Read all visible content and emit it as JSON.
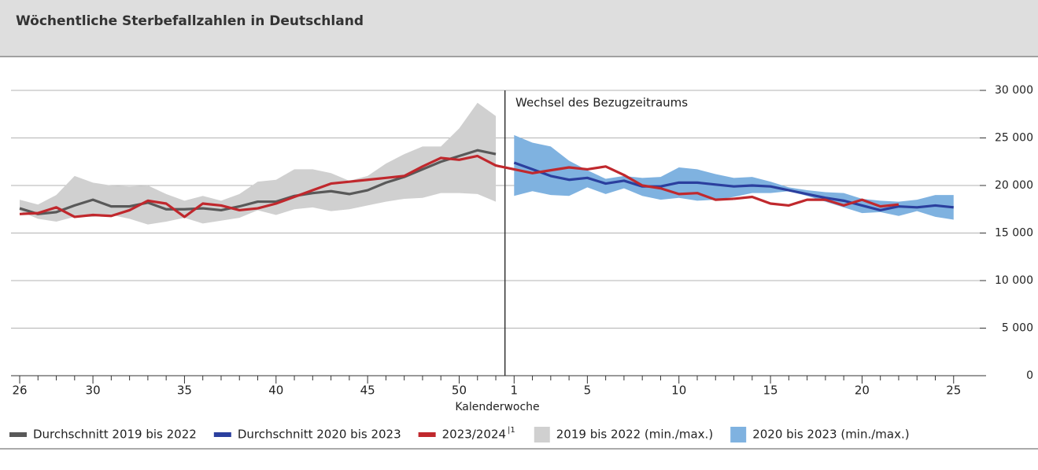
{
  "chart_data": {
    "type": "line",
    "title": "Wöchentliche Sterbefallzahlen in Deutschland",
    "x_label": "Kalenderwoche",
    "annotation": "Wechsel des Bezugzeitraums",
    "categories": [
      "26",
      null,
      null,
      null,
      "30",
      null,
      null,
      null,
      null,
      "35",
      null,
      null,
      null,
      null,
      "40",
      null,
      null,
      null,
      null,
      "45",
      null,
      null,
      null,
      null,
      "50",
      null,
      null,
      "1",
      null,
      null,
      null,
      "5",
      null,
      null,
      null,
      null,
      "10",
      null,
      null,
      null,
      null,
      "15",
      null,
      null,
      null,
      null,
      "20",
      null,
      null,
      null,
      null,
      "25"
    ],
    "ylim": [
      0,
      30000
    ],
    "yticks": [
      0,
      {
        "value": 5000,
        "label": "5 000"
      },
      {
        "value": 10000,
        "label": "10 000"
      },
      {
        "value": 15000,
        "label": "15 000"
      },
      {
        "value": 20000,
        "label": "20 000"
      },
      {
        "value": 25000,
        "label": "25 000"
      },
      {
        "value": 30000,
        "label": "30 000"
      }
    ],
    "grid": true,
    "legend": "bottom",
    "series": [
      {
        "name": "Durchschnitt 2019 bis 2022",
        "color": "#595959",
        "values": [
          17600,
          17000,
          17200,
          17900,
          18500,
          17800,
          17800,
          18200,
          17500,
          17500,
          17600,
          17400,
          17800,
          18300,
          18300,
          18900,
          19200,
          19400,
          19100,
          19500,
          20300,
          20900,
          21700,
          22500,
          23100,
          23700,
          23300,
          null,
          null,
          null,
          null,
          null,
          null,
          null,
          null,
          null,
          null,
          null,
          null,
          null,
          null,
          null,
          null,
          null,
          null,
          null,
          null,
          null,
          null,
          null,
          null,
          null
        ]
      },
      {
        "name": "Durchschnitt 2020 bis 2023",
        "color": "#2b3f9e",
        "values": [
          null,
          null,
          null,
          null,
          null,
          null,
          null,
          null,
          null,
          null,
          null,
          null,
          null,
          null,
          null,
          null,
          null,
          null,
          null,
          null,
          null,
          null,
          null,
          null,
          null,
          null,
          null,
          22400,
          21700,
          21000,
          20600,
          20800,
          20200,
          20500,
          19900,
          19900,
          20300,
          20300,
          20100,
          19900,
          20000,
          19900,
          19500,
          19100,
          18700,
          18400,
          17900,
          17400,
          17800,
          17700,
          17900,
          17700
        ]
      },
      {
        "name": "2023/2024",
        "footnote": "|1",
        "color": "#c0282d",
        "dotted_from_index": 39,
        "values": [
          17000,
          17100,
          17700,
          16700,
          16900,
          16800,
          17400,
          18400,
          18100,
          16700,
          18100,
          17900,
          17400,
          17600,
          18100,
          18800,
          19500,
          20200,
          20400,
          20600,
          20800,
          21000,
          22000,
          22900,
          22700,
          23100,
          22100,
          21700,
          21300,
          21600,
          21900,
          21700,
          22000,
          21100,
          20000,
          19700,
          19100,
          19200,
          18500,
          18600,
          18800,
          18100,
          17900,
          18500,
          18500,
          17900,
          18500,
          17800,
          18000,
          null,
          null,
          null
        ]
      }
    ],
    "bands": [
      {
        "name": "2019 bis 2022 (min./max.)",
        "color": "#d0d0d0",
        "upper": [
          18500,
          18000,
          19000,
          21000,
          20300,
          20000,
          19900,
          20000,
          19100,
          18400,
          18900,
          18400,
          19100,
          20400,
          20600,
          21700,
          21700,
          21300,
          20500,
          21000,
          22300,
          23300,
          24100,
          24100,
          26000,
          28700,
          27300,
          null,
          null,
          null,
          null,
          null,
          null,
          null,
          null,
          null,
          null,
          null,
          null,
          null,
          null,
          null,
          null,
          null,
          null,
          null,
          null,
          null,
          null,
          null,
          null,
          null
        ],
        "lower": [
          17300,
          16500,
          16200,
          16700,
          16700,
          16900,
          16500,
          15900,
          16200,
          16600,
          16000,
          16300,
          16600,
          17400,
          16900,
          17500,
          17700,
          17300,
          17500,
          17900,
          18300,
          18600,
          18700,
          19200,
          19200,
          19100,
          18300,
          null,
          null,
          null,
          null,
          null,
          null,
          null,
          null,
          null,
          null,
          null,
          null,
          null,
          null,
          null,
          null,
          null,
          null,
          null,
          null,
          null,
          null,
          null,
          null,
          null
        ]
      },
      {
        "name": "2020 bis 2023 (min./max.)",
        "color": "#7fb2e0",
        "upper": [
          null,
          null,
          null,
          null,
          null,
          null,
          null,
          null,
          null,
          null,
          null,
          null,
          null,
          null,
          null,
          null,
          null,
          null,
          null,
          null,
          null,
          null,
          null,
          null,
          null,
          null,
          null,
          25300,
          24500,
          24100,
          22600,
          21600,
          20700,
          21000,
          20800,
          20900,
          21900,
          21700,
          21200,
          20800,
          20900,
          20400,
          19800,
          19500,
          19300,
          19200,
          18600,
          18400,
          18300,
          18500,
          19000,
          19000
        ],
        "lower": [
          null,
          null,
          null,
          null,
          null,
          null,
          null,
          null,
          null,
          null,
          null,
          null,
          null,
          null,
          null,
          null,
          null,
          null,
          null,
          null,
          null,
          null,
          null,
          null,
          null,
          null,
          null,
          18900,
          19400,
          19000,
          18900,
          19800,
          19100,
          19700,
          18900,
          18500,
          18700,
          18400,
          18500,
          18800,
          19200,
          19200,
          19400,
          18900,
          18300,
          17700,
          17100,
          17200,
          16800,
          17300,
          16700,
          16400
        ]
      }
    ]
  }
}
